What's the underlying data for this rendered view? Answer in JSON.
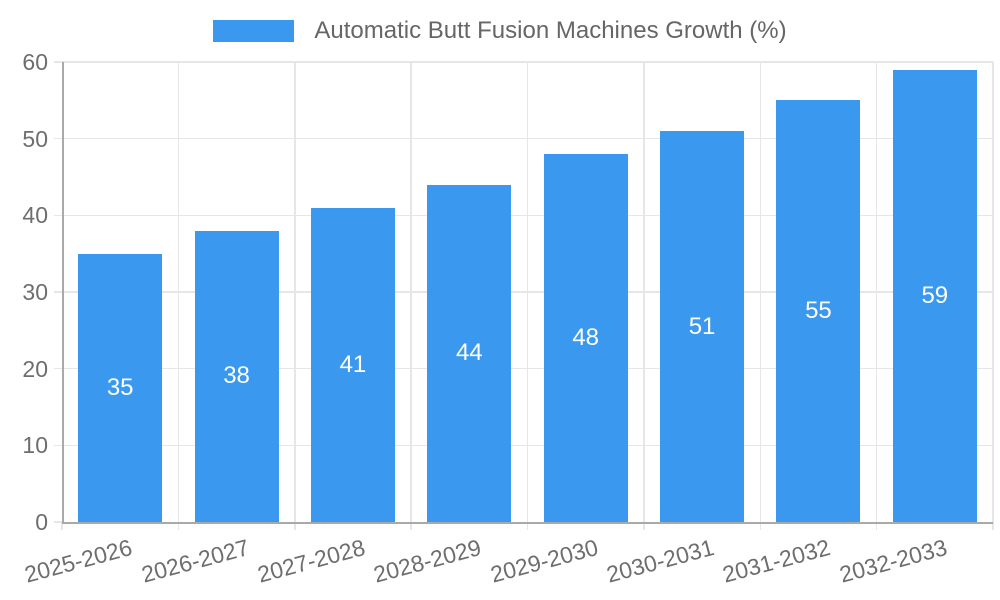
{
  "legend": {
    "label": "Automatic Butt Fusion Machines Growth (%)"
  },
  "chart_data": {
    "type": "bar",
    "title": "Automatic Butt Fusion Machines Growth (%)",
    "categories": [
      "2025-2026",
      "2026-2027",
      "2027-2028",
      "2028-2029",
      "2029-2030",
      "2030-2031",
      "2031-2032",
      "2032-2033"
    ],
    "series": [
      {
        "name": "Automatic Butt Fusion Machines Growth (%)",
        "values": [
          35,
          38,
          41,
          44,
          48,
          51,
          55,
          59
        ]
      }
    ],
    "xlabel": "",
    "ylabel": "",
    "ylim": [
      0,
      60
    ],
    "ytick_step": 10,
    "yticks": [
      0,
      10,
      20,
      30,
      40,
      50,
      60
    ],
    "grid": true,
    "legend_position": "top-center",
    "value_labels": "centered-in-bar",
    "x_label_rotation_deg": -15,
    "colors": {
      "bar": "#3a99ee",
      "grid": "#e6e6e6",
      "axis_line": "#a9a9a9",
      "axis_text": "#6e6e6e",
      "title_text": "#666666",
      "value_label": "#ffffff"
    }
  }
}
